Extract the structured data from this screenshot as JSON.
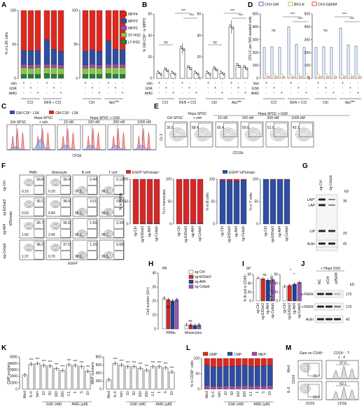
{
  "panel_labels": [
    "A",
    "B",
    "C",
    "D",
    "E",
    "F",
    "G",
    "H",
    "I",
    "J",
    "K",
    "L",
    "M"
  ],
  "common": {
    "veh": "Veh",
    "gsk": "GSK",
    "amg": "AMG",
    "ccl4": "CCl",
    "den_ccl4": "DEN + CCl",
    "ctrl": "Ctrl",
    "apc": "Apc",
    "apc_sup": "Min",
    "ns": "ns",
    "sig3": "***",
    "sig1": "*"
  },
  "A": {
    "ylabel": "% in LSK cells",
    "legend": [
      "MPP4",
      "MPP3",
      "MPP2",
      "ST-HSC",
      "LT-HSC"
    ],
    "colors": [
      "#e0281f",
      "#2f4ea1",
      "#9b4fa0",
      "#8ac44a",
      "#23823a"
    ],
    "yticks": [
      "0",
      "50",
      "100"
    ],
    "sign_rows": [
      [
        "+",
        "-",
        "-"
      ],
      [
        "-",
        "+",
        "-"
      ],
      [
        "-",
        "-",
        "+"
      ]
    ],
    "chart_data": [
      {
        "type": "bar",
        "stacked": true,
        "title": "",
        "categories": [
          "1",
          "2",
          "3",
          "4",
          "5",
          "6"
        ],
        "series": [
          {
            "name": "LT-HSC",
            "values": [
              6,
              6,
              6,
              7,
              6,
              6
            ]
          },
          {
            "name": "ST-HSC",
            "values": [
              10,
              9,
              10,
              9,
              10,
              9
            ]
          },
          {
            "name": "MPP2",
            "values": [
              5,
              5,
              5,
              5,
              5,
              5
            ]
          },
          {
            "name": "MPP3",
            "values": [
              20,
              21,
              20,
              36,
              22,
              20
            ]
          },
          {
            "name": "MPP4",
            "values": [
              59,
              59,
              59,
              43,
              57,
              60
            ]
          }
        ],
        "ylim": [
          0,
          100
        ]
      },
      {
        "type": "bar",
        "stacked": true,
        "categories": [
          "1",
          "2",
          "3",
          "4",
          "5",
          "6"
        ],
        "series": [
          {
            "name": "LT-HSC",
            "values": [
              6,
              6,
              6,
              7,
              6,
              6
            ]
          },
          {
            "name": "ST-HSC",
            "values": [
              9,
              10,
              9,
              9,
              10,
              10
            ]
          },
          {
            "name": "MPP2",
            "values": [
              5,
              5,
              5,
              5,
              5,
              5
            ]
          },
          {
            "name": "MPP3",
            "values": [
              20,
              21,
              20,
              34,
              22,
              21
            ]
          },
          {
            "name": "MPP4",
            "values": [
              60,
              58,
              60,
              45,
              57,
              58
            ]
          }
        ],
        "ylim": [
          0,
          100
        ]
      }
    ]
  },
  "B": {
    "ylabel": "% GM-CSF⁺ in MPP3",
    "yticks1": [
      "0",
      "20",
      "40",
      "60"
    ],
    "yticks2": [
      "0",
      "20",
      "40",
      "60"
    ],
    "chart_data": [
      {
        "type": "bar",
        "categories": [
          "1",
          "2",
          "3",
          "4",
          "5",
          "6"
        ],
        "values": [
          5,
          8,
          5,
          28,
          10,
          5
        ],
        "errors": [
          1,
          2,
          1,
          5,
          2,
          1
        ],
        "ylim": [
          0,
          60
        ]
      },
      {
        "type": "bar",
        "categories": [
          "1",
          "2",
          "3",
          "4",
          "5",
          "6"
        ],
        "values": [
          5,
          9,
          5,
          48,
          12,
          10
        ],
        "errors": [
          1,
          2,
          1,
          6,
          2,
          2
        ],
        "ylim": [
          0,
          60
        ]
      }
    ]
  },
  "C": {
    "legend_hi": "GM-CSF⁺ LSK",
    "legend_lo": "GM-CSF⁻ LSK",
    "header_ctrl": "Ctrl SPSC",
    "header_veh": "Hepa SPSC + veh",
    "header_gsk": "Hepa SPSC + GSK",
    "conc": [
      "10 nM",
      "100 nM",
      "200 nM",
      "1000 nM"
    ],
    "xlabel": "CFSE"
  },
  "D": {
    "legend": [
      "CFU-GM",
      "BFU-E",
      "CFU-GEMM"
    ],
    "ylabel": "CFU-C per 500 seeded cells",
    "yticks1": [
      "0",
      "100",
      "200",
      "300",
      "400",
      "500"
    ],
    "yticks2": [
      "0",
      "100",
      "200",
      "300",
      "400",
      "500"
    ],
    "chart_data": [
      {
        "type": "bar",
        "categories": [
          "1",
          "2",
          "3",
          "4",
          "5",
          "6"
        ],
        "series": [
          {
            "name": "CFU-GM",
            "values": [
              240,
              245,
              240,
              400,
              265,
              240
            ]
          },
          {
            "name": "BFU-E",
            "values": [
              35,
              35,
              34,
              30,
              34,
              35
            ]
          },
          {
            "name": "CFU-GEMM",
            "values": [
              15,
              15,
              14,
              12,
              14,
              15
            ]
          }
        ],
        "ylim": [
          0,
          500
        ]
      },
      {
        "type": "bar",
        "categories": [
          "1",
          "2",
          "3",
          "4",
          "5",
          "6"
        ],
        "series": [
          {
            "name": "CFU-GM",
            "values": [
              240,
              245,
              240,
              390,
              260,
              250
            ]
          },
          {
            "name": "BFU-E",
            "values": [
              34,
              35,
              33,
              30,
              34,
              34
            ]
          },
          {
            "name": "CFU-GEMM",
            "values": [
              15,
              15,
              14,
              13,
              14,
              15
            ]
          }
        ],
        "ylim": [
          0,
          500
        ]
      }
    ]
  },
  "E": {
    "header_ctrl": "Ctrl SPSC",
    "header_veh": "Hepa SPSC\n+ veh",
    "header_gsk": "Hepa SPSC + GSK",
    "conc": [
      "10 nM",
      "100 nM",
      "200 nM",
      "1000 nM"
    ],
    "values": [
      "35.6",
      "68.4",
      "65.4",
      "59.8",
      "51.6",
      "42.1"
    ],
    "ylabel": "Gr-1",
    "xlabel": "CD11b"
  },
  "F": {
    "col_headers": [
      "PMN",
      "Monocyte",
      "B cell",
      "T cell"
    ],
    "row_labels": [
      "sg-Ctrl",
      "sg-Eif2ak3",
      "sg-Atf4",
      "sg-Cebpb"
    ],
    "top_values": [
      [
        "99.8",
        "99.4",
        "2.44",
        "0.12"
      ],
      [
        "99.1",
        "98.9",
        "3.51",
        "0.03"
      ],
      [
        "96.7",
        "95.6",
        "1.56",
        "0.34"
      ],
      [
        "98.2",
        "97.5",
        "1.26",
        "0.08"
      ]
    ],
    "bottom_values": [
      [
        "0.15",
        "0.20",
        "97.5",
        "99.7"
      ],
      [
        "0.63",
        "0.84",
        "96.2",
        "99.0"
      ],
      [
        "1.50",
        "2.45",
        "95.1",
        "99.7"
      ],
      [
        "1.37",
        "0.76",
        "98.0",
        "99.5"
      ]
    ],
    "ylabel": "tdTomato",
    "xlabel": "EGFP",
    "legend_red": "EGFP⁺tdTomato⁺",
    "legend_blue": "EGFP⁺tdTomato⁻",
    "bar_ylabels": [
      "% in PMNs",
      "% in monocytes",
      "% in B cells",
      "% in T cells"
    ],
    "bar_xcats": [
      "sg-Ctrl",
      "sg-Eif2ak3",
      "sg-Atf4",
      "sg-Cebpb"
    ],
    "chart_data": [
      {
        "type": "bar",
        "stacked": true,
        "categories": [
          "sg-Ctrl",
          "sg-Eif2ak3",
          "sg-Atf4",
          "sg-Cebpb"
        ],
        "series": [
          {
            "name": "EGFP⁺tdTomato⁻",
            "values": [
              0,
              1,
              2,
              1
            ]
          },
          {
            "name": "EGFP⁺tdTomato⁺",
            "values": [
              100,
              99,
              98,
              99
            ]
          }
        ],
        "ylim": [
          0,
          100
        ]
      },
      {
        "type": "bar",
        "stacked": true,
        "categories": [
          "sg-Ctrl",
          "sg-Eif2ak3",
          "sg-Atf4",
          "sg-Cebpb"
        ],
        "series": [
          {
            "name": "EGFP⁺tdTomato⁻",
            "values": [
              0,
              1,
              2,
              1
            ]
          },
          {
            "name": "EGFP⁺tdTomato⁺",
            "values": [
              100,
              99,
              98,
              99
            ]
          }
        ],
        "ylim": [
          0,
          100
        ]
      },
      {
        "type": "bar",
        "stacked": true,
        "categories": [
          "sg-Ctrl",
          "sg-Eif2ak3",
          "sg-Atf4",
          "sg-Cebpb"
        ],
        "series": [
          {
            "name": "EGFP⁺tdTomato⁻",
            "values": [
              97,
              96,
              95,
              98
            ]
          },
          {
            "name": "EGFP⁺tdTomato⁺",
            "values": [
              3,
              4,
              5,
              2
            ]
          }
        ],
        "ylim": [
          0,
          100
        ]
      },
      {
        "type": "bar",
        "stacked": true,
        "categories": [
          "sg-Ctrl",
          "sg-Eif2ak3",
          "sg-Atf4",
          "sg-Cebpb"
        ],
        "series": [
          {
            "name": "EGFP⁺tdTomato⁻",
            "values": [
              100,
              99,
              100,
              99
            ]
          },
          {
            "name": "EGFP⁺tdTomato⁺",
            "values": [
              0,
              1,
              0,
              1
            ]
          }
        ],
        "ylim": [
          0,
          100
        ]
      }
    ],
    "yticks": [
      "0",
      "50",
      "100"
    ]
  },
  "G": {
    "lanes": [
      "sg-Ctrl",
      "sg-Cebpb"
    ],
    "bands": [
      "LAP*",
      "LAP",
      "LIP",
      "Actin"
    ],
    "kd": [
      "kD",
      "35",
      "20",
      "42"
    ]
  },
  "H": {
    "ylabel": "Cell number (10⁴)",
    "title": "PB",
    "legend": [
      "sg-Ctrl",
      "sg-Eif2ak3",
      "sg-Atf4",
      "sg-Cebpb"
    ],
    "colors": [
      "#ffffff",
      "#d62728",
      "#1f3f99",
      "#9b59b6"
    ],
    "yticks": [
      "0",
      "10",
      "20",
      "30",
      "40"
    ],
    "chart_data": {
      "type": "bar",
      "categories": [
        "PMNs",
        "Monocytes"
      ],
      "series": [
        {
          "name": "sg-Ctrl",
          "values": [
            22,
            3
          ]
        },
        {
          "name": "sg-Eif2ak3",
          "values": [
            21,
            3
          ]
        },
        {
          "name": "sg-Atf4",
          "values": [
            20,
            2.5
          ]
        },
        {
          "name": "sg-Cebpb",
          "values": [
            21,
            3
          ]
        }
      ],
      "ylim": [
        0,
        40
      ]
    }
  },
  "I": {
    "title": "SP",
    "ylabel1": "% B cell in CD45⁺",
    "ylabel2": "% T cell in CD45⁺",
    "yticks1": [
      "0",
      "20",
      "40",
      "60"
    ],
    "yticks2": [
      "0",
      "20",
      "40",
      "60"
    ],
    "cats": [
      "sg-Ctrl",
      "sg-Eif2ak3",
      "sg-Atf4",
      "sg-Cebpb"
    ],
    "chart_data": [
      {
        "type": "bar",
        "categories": [
          "sg-Ctrl",
          "sg-Eif2ak3",
          "sg-Atf4",
          "sg-Cebpb"
        ],
        "values": [
          52,
          50,
          47,
          48
        ],
        "ylim": [
          0,
          60
        ]
      },
      {
        "type": "bar",
        "categories": [
          "sg-Ctrl",
          "sg-Eif2ak3",
          "sg-Atf4",
          "sg-Cebpb"
        ],
        "values": [
          33,
          35,
          38,
          42
        ],
        "ylim": [
          0,
          60
        ]
      }
    ]
  },
  "J": {
    "header": "+ Hepa SSN",
    "lanes": [
      "NC",
      "siCtrl",
      "siPERK"
    ],
    "bands": [
      "p-PERK",
      "t-PERK",
      "Actin"
    ],
    "kd": [
      "kD",
      "170",
      "170",
      "42"
    ]
  },
  "K": {
    "ylabel1": "CMP numbers",
    "ylabel2": "MEP numbers",
    "yticks1": [
      "0",
      "1000",
      "2000",
      "3000",
      "4000",
      "5000"
    ],
    "yticks2": [
      "0",
      "200",
      "400",
      "600",
      "800"
    ],
    "cats": [
      "Med",
      "IL-6",
      "Veh",
      "10",
      "50",
      "100",
      "200",
      "0.1",
      "1",
      "5",
      "10"
    ],
    "group_gsk": "GSK (nM)",
    "group_amg": "AMG (μM)",
    "chart_data": [
      {
        "type": "bar",
        "categories": [
          "Med",
          "IL-6",
          "Veh",
          "10",
          "50",
          "100",
          "200",
          "0.1",
          "1",
          "5",
          "10"
        ],
        "values": [
          2200,
          3900,
          4000,
          3700,
          3600,
          3200,
          2900,
          3800,
          3700,
          3500,
          2800
        ],
        "ylim": [
          0,
          5000
        ]
      },
      {
        "type": "bar",
        "categories": [
          "Med",
          "IL-6",
          "Veh",
          "10",
          "50",
          "100",
          "200",
          "0.1",
          "1",
          "5",
          "10"
        ],
        "values": [
          230,
          640,
          600,
          560,
          560,
          520,
          470,
          560,
          560,
          530,
          430
        ],
        "ylim": [
          0,
          800
        ]
      }
    ]
  },
  "L": {
    "ylabel": "% in CD38⁺ cells",
    "legend": [
      "GMP",
      "CMP",
      "MEP"
    ],
    "colors": [
      "#e0281f",
      "#2f4ea1",
      "#9b4fa0"
    ],
    "yticks": [
      "0",
      "50",
      "100"
    ],
    "cats": [
      "Med",
      "IL-6",
      "Veh",
      "10",
      "50",
      "100",
      "200",
      "0.1",
      "1",
      "5",
      "10"
    ],
    "group_gsk": "GSK (nM)",
    "group_amg": "AMG (μM)",
    "chart_data": {
      "type": "bar",
      "stacked": true,
      "categories": [
        "Med",
        "IL-6",
        "Veh",
        "10",
        "50",
        "100",
        "200",
        "0.1",
        "1",
        "5",
        "10"
      ],
      "series": [
        {
          "name": "MEP",
          "values": [
            12,
            10,
            10,
            11,
            11,
            11,
            12,
            11,
            11,
            11,
            12
          ]
        },
        {
          "name": "CMP",
          "values": [
            66,
            62,
            62,
            63,
            64,
            65,
            66,
            63,
            64,
            65,
            66
          ]
        },
        {
          "name": "GMP",
          "values": [
            22,
            28,
            28,
            26,
            25,
            24,
            22,
            26,
            25,
            24,
            22
          ]
        }
      ],
      "ylim": [
        0,
        100
      ]
    }
  },
  "M": {
    "gate": "Gate on CD45⁺",
    "rows": [
      "Med",
      "IL-6"
    ],
    "ylabel": "CD14",
    "xlabel": "CD15",
    "dot_values": [
      "21.7",
      "60.6"
    ],
    "hist_header": "CD15⁺ : T",
    "ratio": "1 : 4",
    "hist_values": [
      "37.0",
      "60.1"
    ],
    "hist_xlabel": "CFSE"
  }
}
